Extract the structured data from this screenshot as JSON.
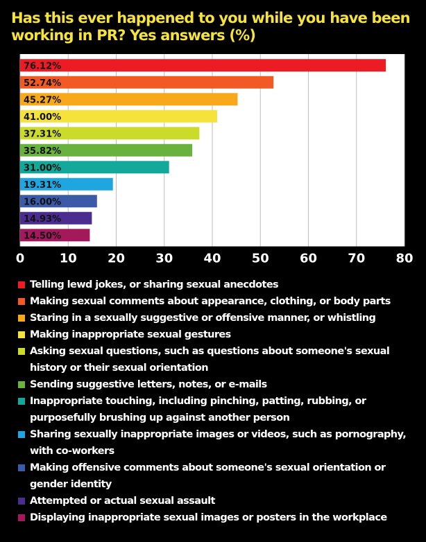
{
  "chart_data": {
    "type": "bar",
    "orientation": "horizontal",
    "title": "Has this ever happened to you while you have been working in PR? Yes answers (%)",
    "xlim": [
      0,
      80
    ],
    "xticks": [
      0,
      10,
      20,
      30,
      40,
      50,
      60,
      70,
      80
    ],
    "grid": true,
    "legend_position": "bottom",
    "series": [
      {
        "name": "Telling lewd jokes, or sharing sexual anecdotes",
        "value": 76.12,
        "label": "76.12%",
        "color": "#ed1c24"
      },
      {
        "name": "Making sexual comments about appearance, clothing, or body parts",
        "value": 52.74,
        "label": "52.74%",
        "color": "#f15a24"
      },
      {
        "name": "Staring in a sexually suggestive or offensive manner, or whistling",
        "value": 45.27,
        "label": "45.27%",
        "color": "#f7a81b"
      },
      {
        "name": "Making inappropriate sexual gestures",
        "value": 41.0,
        "label": "41.00%",
        "color": "#f5e23a"
      },
      {
        "name": "Asking sexual questions, such as questions about someone's sexual history or their sexual orientation",
        "value": 37.31,
        "label": "37.31%",
        "color": "#cbdb2a"
      },
      {
        "name": "Sending suggestive letters, notes, or e-mails",
        "value": 35.82,
        "label": "35.82%",
        "color": "#6ab23e"
      },
      {
        "name": "Inappropriate touching, including pinching, patting, rubbing, or purposefully brushing up against another person",
        "value": 31.0,
        "label": "31.00%",
        "color": "#12a89a"
      },
      {
        "name": "Sharing sexually inappropriate images or videos, such as pornography, with co-workers",
        "value": 19.31,
        "label": "19.31%",
        "color": "#1fa6e0"
      },
      {
        "name": "Making offensive comments about someone's sexual orientation or gender identity",
        "value": 16.0,
        "label": "16.00%",
        "color": "#3b5aa8"
      },
      {
        "name": "Attempted or actual sexual assault",
        "value": 14.93,
        "label": "14.93%",
        "color": "#4b2d8f"
      },
      {
        "name": "Displaying inappropriate sexual images or posters in the workplace",
        "value": 14.5,
        "label": "14.50%",
        "color": "#a3195b"
      }
    ]
  }
}
